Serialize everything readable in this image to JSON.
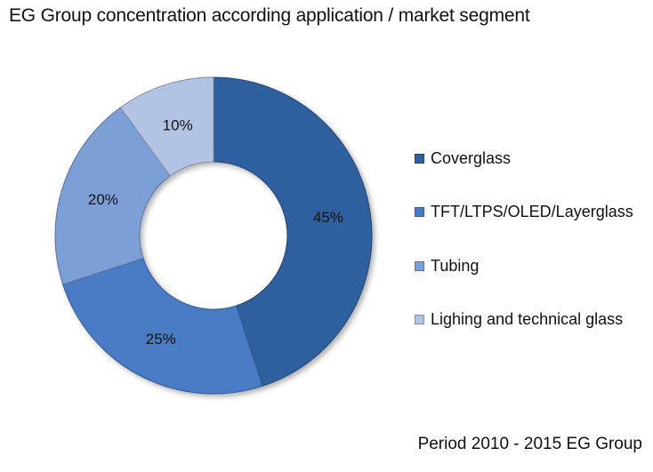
{
  "chart_data": {
    "type": "pie",
    "variant": "donut",
    "title": "EG Group concentration according application / market segment",
    "categories": [
      "Coverglass",
      "TFT/LTPS/OLED/Layerglass",
      "Tubing",
      "Lighing and technical glass"
    ],
    "values": [
      45,
      25,
      20,
      10
    ],
    "labels": [
      "45%",
      "25%",
      "20%",
      "10%"
    ],
    "colors": [
      "#2f5f9f",
      "#4a7cc4",
      "#7b9fd8",
      "#b3c3e4"
    ],
    "legend_position": "right",
    "footnote": "Period 2010 - 2015 EG Group"
  }
}
